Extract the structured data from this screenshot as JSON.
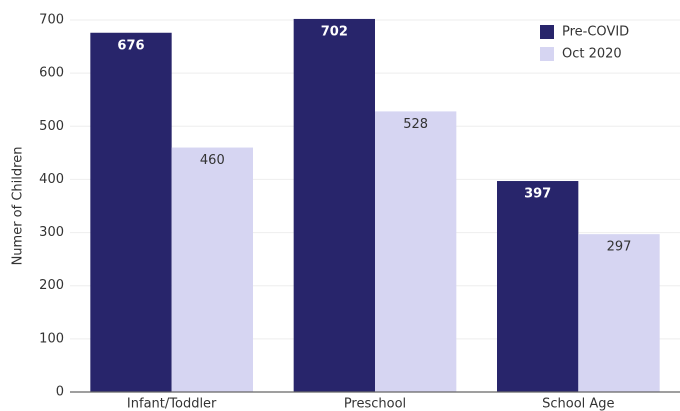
{
  "chart_data": {
    "type": "bar",
    "y_label": "Numer of Children",
    "categories": [
      "Infant/Toddler",
      "Preschool",
      "School Age"
    ],
    "series": [
      {
        "name": "Pre-COVID",
        "color": "#28256b",
        "values": [
          676,
          702,
          397
        ]
      },
      {
        "name": "Oct 2020",
        "color": "#d6d5f2",
        "values": [
          460,
          528,
          297
        ]
      }
    ],
    "ylim": [
      0,
      700
    ],
    "yticks": [
      0,
      100,
      200,
      300,
      400,
      500,
      600,
      700
    ],
    "grid": true,
    "legend": "top-right"
  }
}
